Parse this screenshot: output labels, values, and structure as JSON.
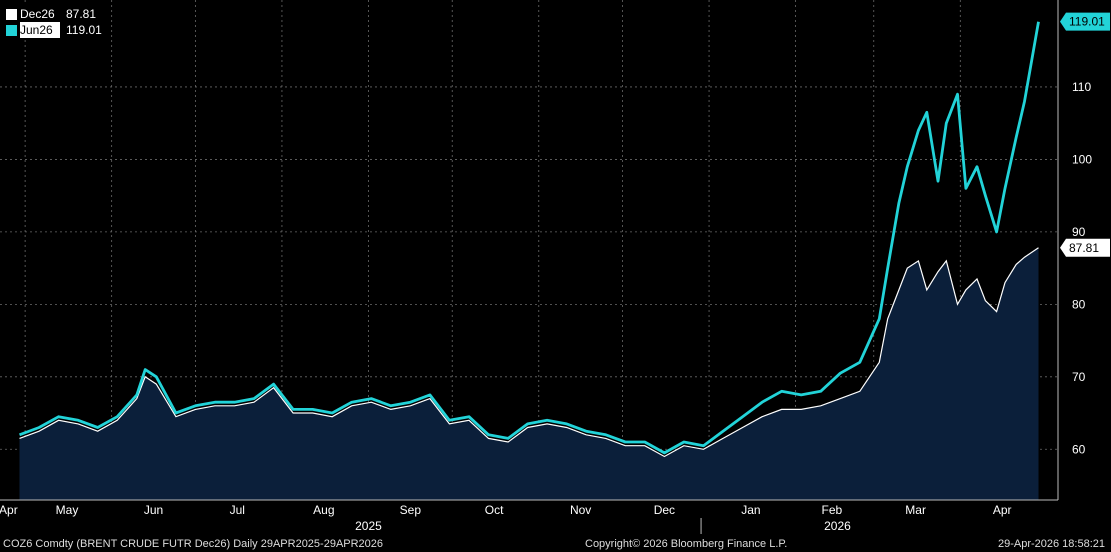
{
  "legend": [
    {
      "name": "Dec26",
      "value": "87.81",
      "color": "#ffffff"
    },
    {
      "name": "Jun26",
      "value": "119.01",
      "color": "#22d3d8"
    }
  ],
  "footer": {
    "left": "COZ6 Comdty (BRENT CRUDE FUTR  Dec26) Daily 29APR2025-29APR2026",
    "center": "Copyright© 2026 Bloomberg Finance L.P.",
    "right": "29-Apr-2026 18:58:21"
  },
  "colors": {
    "background": "#000000",
    "area_fill": "#0b1f3a",
    "dec26": "#ffffff",
    "jun26": "#22d3d8",
    "grid": "#6a6a6a"
  },
  "chart_data": {
    "type": "line",
    "title": "",
    "ylim": [
      53,
      122
    ],
    "yticks": [
      60,
      70,
      80,
      90,
      100,
      110
    ],
    "grid": true,
    "legend_position": "top-left",
    "month_labels": [
      "Apr",
      "May",
      "Jun",
      "Jul",
      "Aug",
      "Sep",
      "Oct",
      "Nov",
      "Dec",
      "Jan",
      "Feb",
      "Mar",
      "Apr"
    ],
    "year_labels": [
      "2025",
      "2026"
    ],
    "last_values": {
      "Jun26": "119.01",
      "Dec26": "87.81"
    },
    "x": [
      "2025-04-29",
      "2025-05-06",
      "2025-05-13",
      "2025-05-20",
      "2025-05-27",
      "2025-06-03",
      "2025-06-10",
      "2025-06-13",
      "2025-06-17",
      "2025-06-24",
      "2025-07-01",
      "2025-07-08",
      "2025-07-15",
      "2025-07-22",
      "2025-07-29",
      "2025-08-05",
      "2025-08-12",
      "2025-08-19",
      "2025-08-26",
      "2025-09-02",
      "2025-09-09",
      "2025-09-16",
      "2025-09-23",
      "2025-09-30",
      "2025-10-07",
      "2025-10-14",
      "2025-10-21",
      "2025-10-28",
      "2025-11-04",
      "2025-11-11",
      "2025-11-18",
      "2025-11-25",
      "2025-12-02",
      "2025-12-09",
      "2025-12-16",
      "2025-12-23",
      "2025-12-30",
      "2026-01-06",
      "2026-01-13",
      "2026-01-20",
      "2026-01-27",
      "2026-02-03",
      "2026-02-10",
      "2026-02-17",
      "2026-02-24",
      "2026-03-03",
      "2026-03-06",
      "2026-03-10",
      "2026-03-13",
      "2026-03-17",
      "2026-03-20",
      "2026-03-24",
      "2026-03-27",
      "2026-03-31",
      "2026-04-03",
      "2026-04-07",
      "2026-04-10",
      "2026-04-14",
      "2026-04-17",
      "2026-04-21",
      "2026-04-24",
      "2026-04-29"
    ],
    "series": [
      {
        "name": "Jun26",
        "values": [
          62.0,
          63.0,
          64.5,
          64.0,
          63.0,
          64.5,
          67.5,
          71.0,
          70.0,
          65.0,
          66.0,
          66.5,
          66.5,
          67.0,
          69.0,
          65.5,
          65.5,
          65.0,
          66.5,
          67.0,
          66.0,
          66.5,
          67.5,
          64.0,
          64.5,
          62.0,
          61.5,
          63.5,
          64.0,
          63.5,
          62.5,
          62.0,
          61.0,
          61.0,
          59.5,
          61.0,
          60.5,
          62.5,
          64.5,
          66.5,
          68.0,
          67.5,
          68.0,
          70.5,
          72.0,
          78.0,
          85.0,
          94.0,
          99.0,
          104.0,
          106.5,
          97.0,
          105.0,
          109.0,
          96.0,
          99.0,
          95.0,
          90.0,
          96.0,
          103.0,
          108.0,
          119.01
        ]
      },
      {
        "name": "Dec26",
        "values": [
          61.5,
          62.5,
          64.0,
          63.5,
          62.5,
          64.0,
          67.0,
          70.0,
          69.0,
          64.5,
          65.5,
          66.0,
          66.0,
          66.5,
          68.5,
          65.0,
          65.0,
          64.5,
          66.0,
          66.5,
          65.5,
          66.0,
          67.0,
          63.5,
          64.0,
          61.5,
          61.0,
          63.0,
          63.5,
          63.0,
          62.0,
          61.5,
          60.5,
          60.5,
          59.0,
          60.5,
          60.0,
          61.5,
          63.0,
          64.5,
          65.5,
          65.5,
          66.0,
          67.0,
          68.0,
          72.0,
          78.0,
          82.0,
          85.0,
          86.0,
          82.0,
          84.5,
          86.0,
          80.0,
          82.0,
          83.5,
          80.5,
          79.0,
          83.0,
          85.5,
          86.5,
          87.81
        ]
      }
    ]
  }
}
